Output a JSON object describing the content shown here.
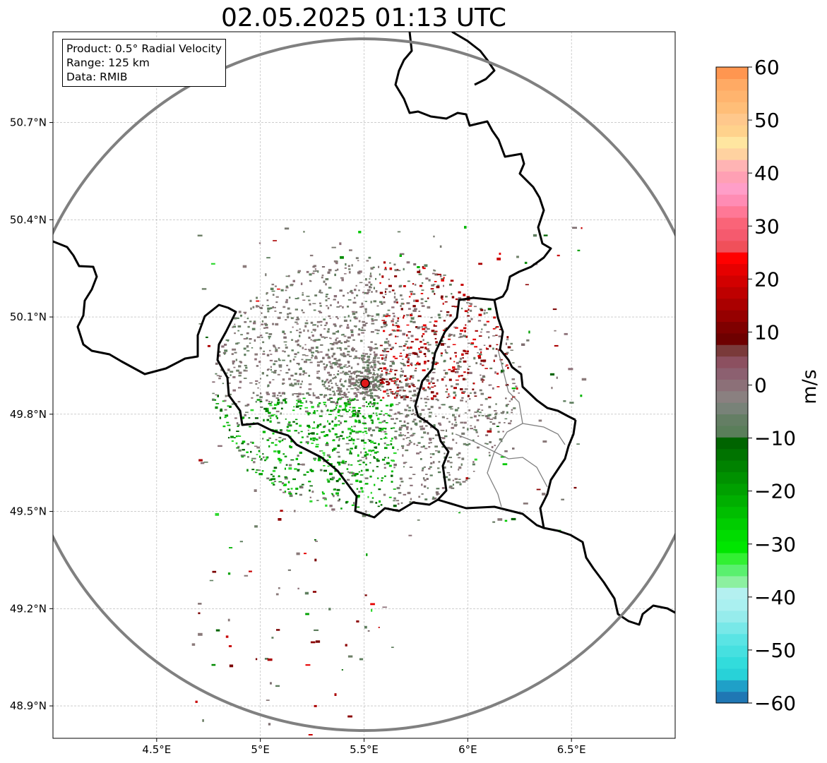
{
  "title": "02.05.2025 01:13 UTC",
  "info_box": {
    "product": "Product: 0.5° Radial Velocity",
    "range": "Range: 125 km",
    "data_source": "Data: RMIB"
  },
  "colorbar": {
    "label": "m/s",
    "min": -60,
    "max": 60,
    "ticks": [
      "60",
      "50",
      "40",
      "30",
      "20",
      "10",
      "0",
      "−10",
      "−20",
      "−30",
      "−40",
      "−50",
      "−60"
    ],
    "colors": [
      "#1f77b4",
      "#1fa0c8",
      "#28d2d8",
      "#32dcdc",
      "#46e0e0",
      "#5ae4e4",
      "#78e8e8",
      "#96ecec",
      "#aaf0f0",
      "#b4f0f0",
      "#8cf0a0",
      "#5af06e",
      "#32f032",
      "#00e600",
      "#00dc00",
      "#00cd00",
      "#00be00",
      "#00af00",
      "#00a000",
      "#009100",
      "#008200",
      "#007300",
      "#006400",
      "#5a7e5a",
      "#647e64",
      "#788278",
      "#8a8080",
      "#8c7078",
      "#8c6070",
      "#8c5060",
      "#7a3a3a",
      "#6e0000",
      "#7f0000",
      "#960000",
      "#aa0000",
      "#be0000",
      "#d20000",
      "#e60000",
      "#ff0000",
      "#f0505a",
      "#f55a6e",
      "#fa6478",
      "#ff7896",
      "#ff8cb4",
      "#ff9ec8",
      "#ffa0b4",
      "#ffb4b4",
      "#ffd2a0",
      "#ffe6a0",
      "#ffd28c",
      "#ffc88c",
      "#ffbe78",
      "#ffb46e",
      "#ffaa64",
      "#ff9650"
    ]
  },
  "chart_data": {
    "type": "radar-ppi-map",
    "title": "02.05.2025 01:13 UTC",
    "x_ticks": [
      "4.5°E",
      "5°E",
      "5.5°E",
      "6°E",
      "6.5°E"
    ],
    "x_tick_values": [
      4.5,
      5.0,
      5.5,
      6.0,
      6.5
    ],
    "y_ticks": [
      "50.7°N",
      "50.4°N",
      "50.1°N",
      "49.8°N",
      "49.5°N",
      "49.2°N",
      "48.9°N"
    ],
    "y_tick_values": [
      50.7,
      50.4,
      50.1,
      49.8,
      49.5,
      49.2,
      48.9
    ],
    "xlim": [
      4.0,
      7.0
    ],
    "ylim": [
      48.8,
      50.98
    ],
    "radar_site": {
      "lon": 5.5,
      "lat": 49.91
    },
    "range_km": 125,
    "grid": true,
    "colorbar_unit": "m/s",
    "colorbar_range": [
      -60,
      60
    ]
  }
}
